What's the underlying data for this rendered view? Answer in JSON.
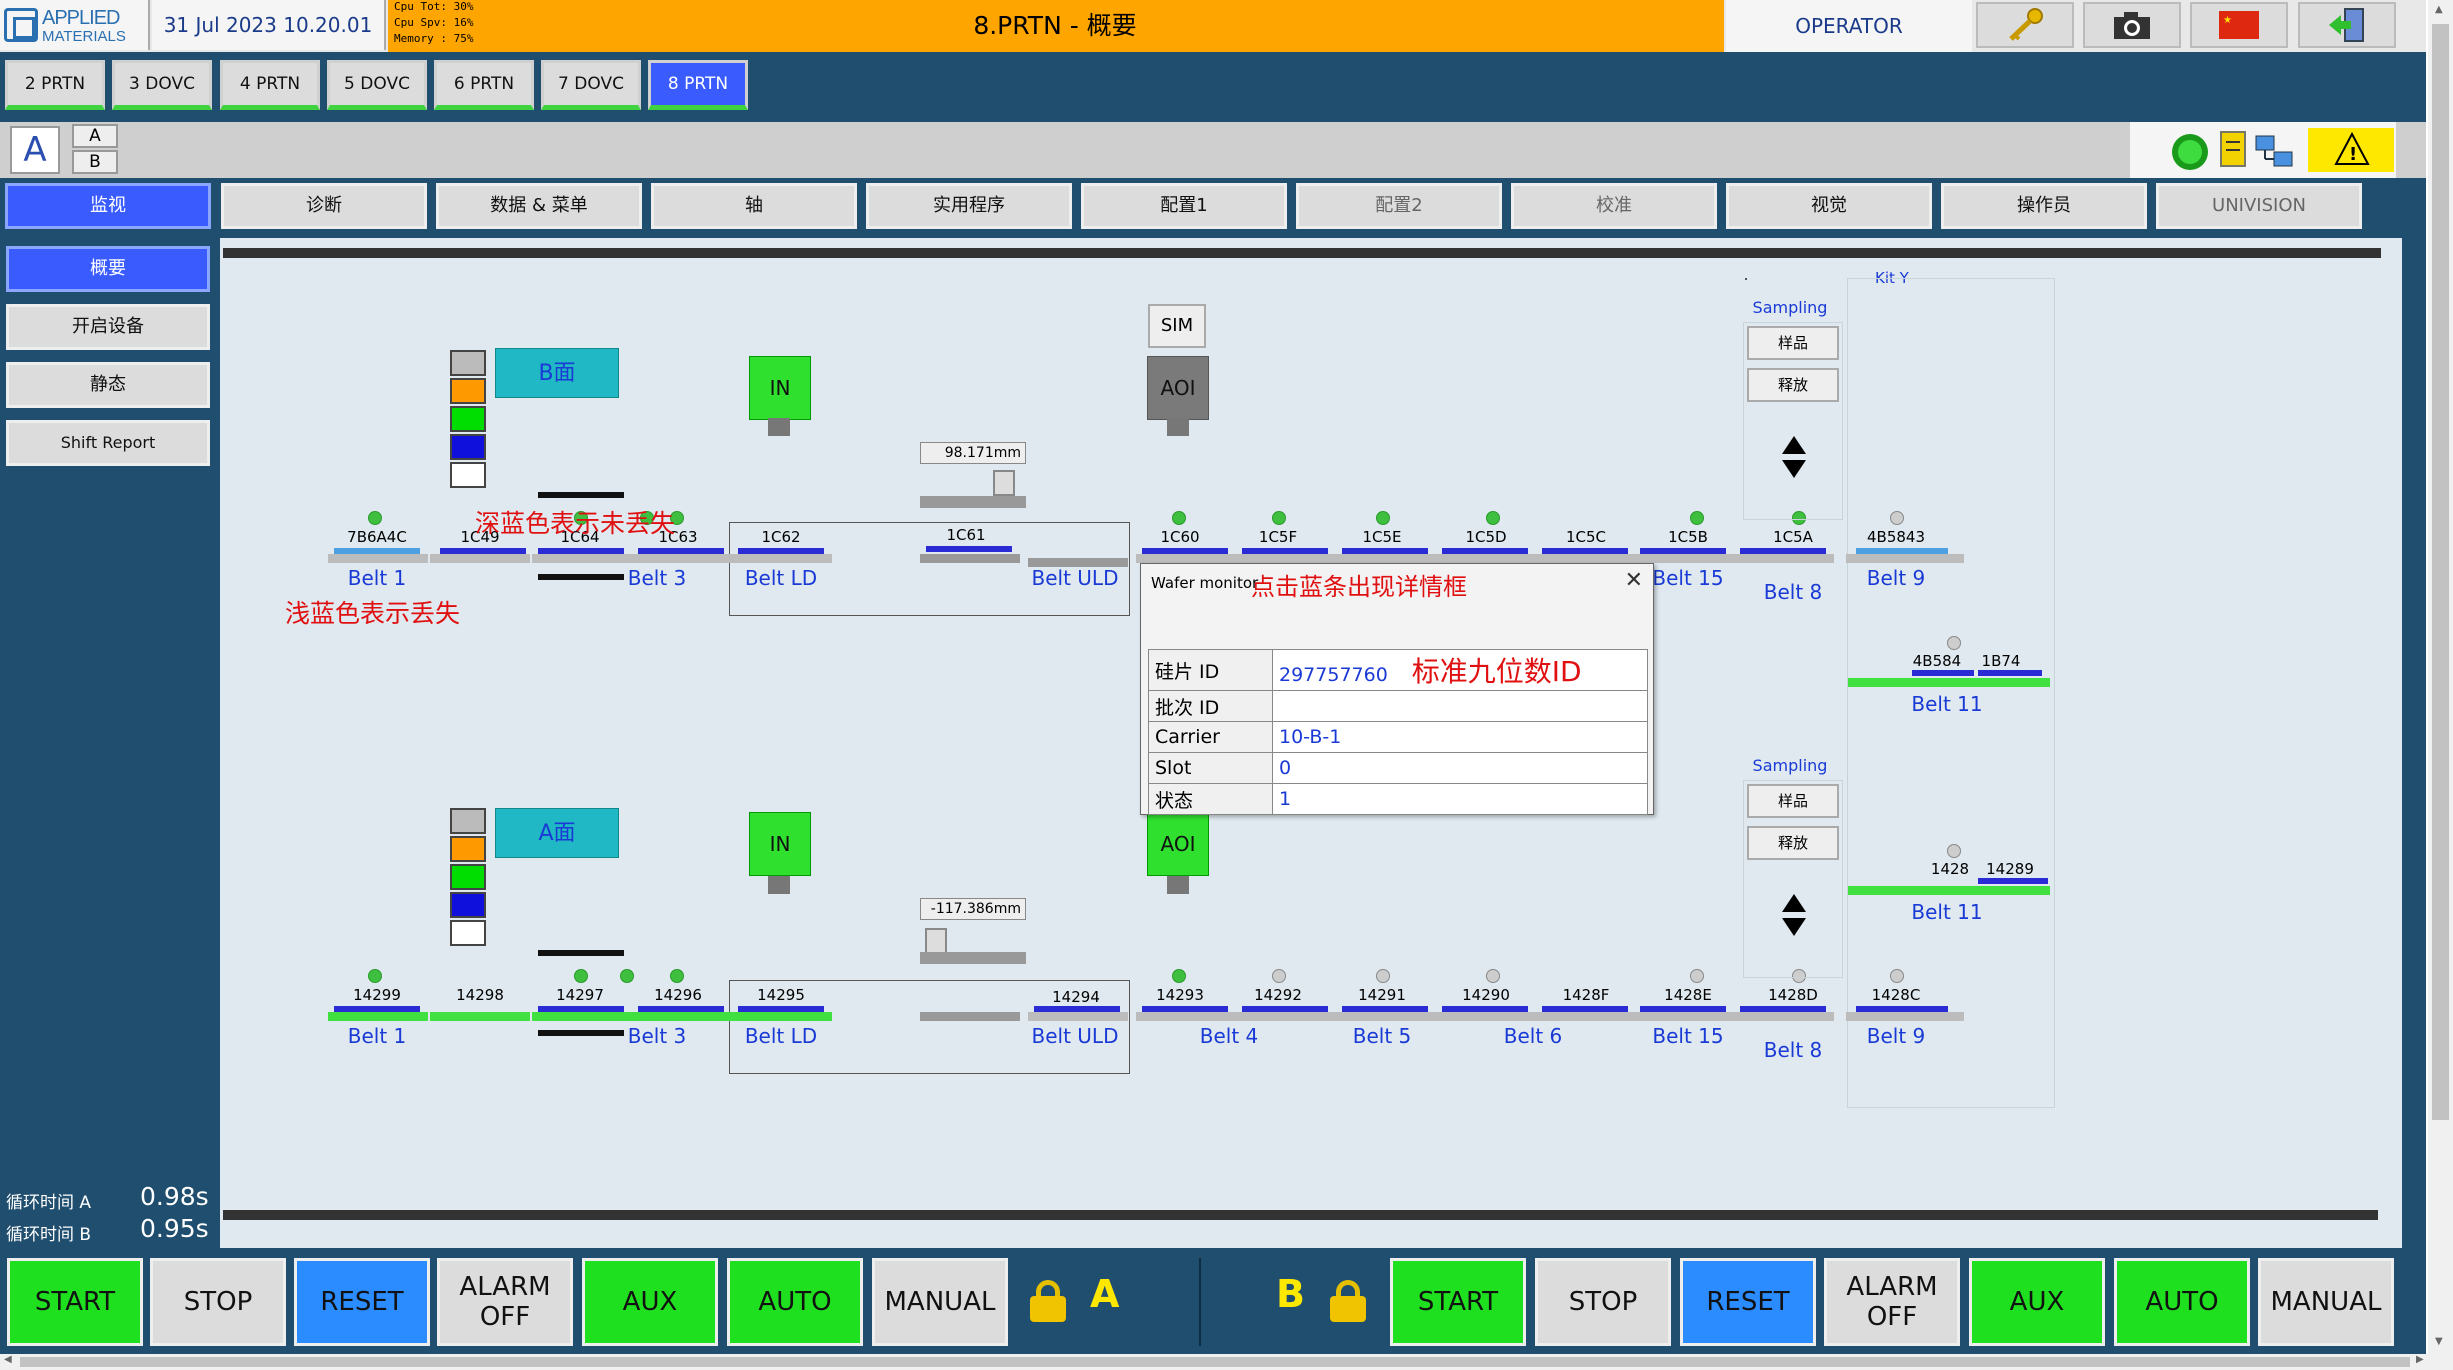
{
  "header": {
    "logo_line1": "APPLIED",
    "logo_line2": "MATERIALS",
    "datetime": "31 Jul 2023 10.20.01",
    "cpu_tot": "Cpu Tot: 30%",
    "cpu_spv": "Cpu Spv: 16%",
    "memory": "Memory : 75%",
    "title": "8.PRTN - 概要",
    "user_role": "OPERATOR",
    "icons": [
      "key-icon",
      "camera-icon",
      "china-flag-icon",
      "exit-icon"
    ]
  },
  "process_tabs": [
    "2 PRTN",
    "3 DOVC",
    "4 PRTN",
    "5 DOVC",
    "6 PRTN",
    "7 DOVC",
    "8 PRTN"
  ],
  "selected_process_tab": "8 PRTN",
  "side_selector": {
    "big": "A",
    "opt_a": "A",
    "opt_b": "B"
  },
  "menu": [
    "监视",
    "诊断",
    "数据 & 菜单",
    "轴",
    "实用程序",
    "配置1",
    "配置2",
    "校准",
    "视觉",
    "操作员",
    "UNIVISION"
  ],
  "sidebar": {
    "items": [
      "概要",
      "开启设备",
      "静态",
      "Shift Report"
    ],
    "cycle_a_label": "循环时间 A",
    "cycle_a_value": "0.98s",
    "cycle_b_label": "循环时间 B",
    "cycle_b_value": "0.95s"
  },
  "diagram": {
    "face_b": "B面",
    "face_a": "A面",
    "in_label": "IN",
    "sim_label": "SIM",
    "aoi_label": "AOI",
    "kit_y": "Kit Y",
    "sampling": "Sampling",
    "sample_btn": "样品",
    "release_btn": "释放",
    "meas_top": "98.171mm",
    "meas_bottom": "-117.386mm",
    "annotation_dark": "深蓝色表示未丢失",
    "annotation_light": "浅蓝色表示丢失",
    "top_wafers": [
      "7B6A4C",
      "1C49",
      "1C64",
      "1C63",
      "1C62",
      "1C61",
      "1C60",
      "1C5F",
      "1C5E",
      "1C5D",
      "1C5C",
      "1C5B",
      "1C5A",
      "4B5843"
    ],
    "top_belts": [
      "Belt 1",
      "Belt 3",
      "Belt LD",
      "Belt ULD",
      "Belt 15",
      "Belt 8",
      "Belt 9"
    ],
    "top_belt11_wafers": [
      "4B584",
      "1B74"
    ],
    "bottom_wafers": [
      "14299",
      "14298",
      "14297",
      "14296",
      "14295",
      "14294",
      "14293",
      "14292",
      "14291",
      "14290",
      "1428F",
      "1428E",
      "1428D",
      "1428C"
    ],
    "bottom_belts": [
      "Belt 1",
      "Belt 3",
      "Belt LD",
      "Belt ULD",
      "Belt 4",
      "Belt 5",
      "Belt 6",
      "Belt 15",
      "Belt 8",
      "Belt 9"
    ],
    "bottom_belt11_wafers": [
      "1428",
      "14289"
    ],
    "belt11": "Belt 11"
  },
  "popup": {
    "title": "Wafer monitor",
    "annotation_title": "点击蓝条出现详情框",
    "annotation_id": "标准九位数ID",
    "rows": [
      {
        "key": "硅片 ID",
        "value": "297757760"
      },
      {
        "key": "批次 ID",
        "value": ""
      },
      {
        "key": "Carrier",
        "value": "10-B-1"
      },
      {
        "key": "Slot",
        "value": "0"
      },
      {
        "key": "状态",
        "value": "1"
      }
    ]
  },
  "bottom_bar": {
    "a": {
      "start": "START",
      "stop": "STOP",
      "reset": "RESET",
      "alarm_off": "ALARM\nOFF",
      "aux": "AUX",
      "auto": "AUTO",
      "manual": "MANUAL",
      "label": "A"
    },
    "b": {
      "label": "B",
      "start": "START",
      "stop": "STOP",
      "reset": "RESET",
      "alarm_off": "ALARM\nOFF",
      "aux": "AUX",
      "auto": "AUTO",
      "manual": "MANUAL"
    }
  },
  "colors": {
    "accent": "#3a5cff",
    "panel": "#1f4e6e",
    "green": "#1fe01f",
    "orange": "#ffa500"
  }
}
